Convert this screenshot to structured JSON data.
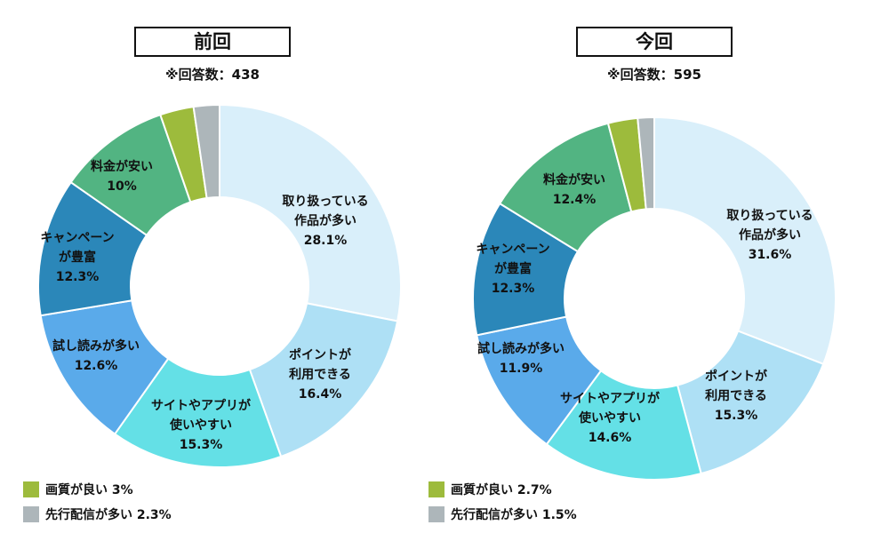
{
  "chart_data": [
    {
      "type": "pie",
      "title": "前回",
      "subtitle": "※回答数：438",
      "series": [
        {
          "name": "取り扱っている作品が多い",
          "label_lines": [
            "取り扱っている",
            "作品が多い",
            "28.1%"
          ],
          "value": 28.1,
          "color": "#d9effa"
        },
        {
          "name": "ポイントが利用できる",
          "label_lines": [
            "ポイントが",
            "利用できる",
            "16.4%"
          ],
          "value": 16.4,
          "color": "#aee0f5"
        },
        {
          "name": "サイトやアプリが使いやすい",
          "label_lines": [
            "サイトやアプリが",
            "使いやすい",
            "15.3%"
          ],
          "value": 15.3,
          "color": "#64e0e6"
        },
        {
          "name": "試し読みが多い",
          "label_lines": [
            "試し読みが多い",
            "12.6%"
          ],
          "value": 12.6,
          "color": "#5aaaea"
        },
        {
          "name": "キャンペーンが豊富",
          "label_lines": [
            "キャンペーン",
            "が豊富",
            "12.3%"
          ],
          "value": 12.3,
          "color": "#2b87b9"
        },
        {
          "name": "料金が安い",
          "label_lines": [
            "料金が安い",
            "10%"
          ],
          "value": 10.0,
          "color": "#52b482"
        },
        {
          "name": "画質が良い",
          "label_lines": [],
          "value": 3.0,
          "color": "#9dbb3c"
        },
        {
          "name": "先行配信が多い",
          "label_lines": [],
          "value": 2.3,
          "color": "#adb6ba"
        }
      ],
      "legend": [
        {
          "text": "画質が良い 3%",
          "color": "#9dbb3c"
        },
        {
          "text": "先行配信が多い 2.3%",
          "color": "#adb6ba"
        }
      ]
    },
    {
      "type": "pie",
      "title": "今回",
      "subtitle": "※回答数：595",
      "series": [
        {
          "name": "取り扱っている作品が多い",
          "label_lines": [
            "取り扱っている",
            "作品が多い",
            "31.6%"
          ],
          "value": 31.6,
          "color": "#d9effa"
        },
        {
          "name": "ポイントが利用できる",
          "label_lines": [
            "ポイントが",
            "利用できる",
            "15.3%"
          ],
          "value": 15.3,
          "color": "#aee0f5"
        },
        {
          "name": "サイトやアプリが使いやすい",
          "label_lines": [
            "サイトやアプリが",
            "使いやすい",
            "14.6%"
          ],
          "value": 14.6,
          "color": "#64e0e6"
        },
        {
          "name": "試し読みが多い",
          "label_lines": [
            "試し読みが多い",
            "11.9%"
          ],
          "value": 11.9,
          "color": "#5aaaea"
        },
        {
          "name": "キャンペーンが豊富",
          "label_lines": [
            "キャンペーン",
            "が豊富",
            "12.3%"
          ],
          "value": 12.3,
          "color": "#2b87b9"
        },
        {
          "name": "料金が安い",
          "label_lines": [
            "料金が安い",
            "12.4%"
          ],
          "value": 12.4,
          "color": "#52b482"
        },
        {
          "name": "画質が良い",
          "label_lines": [],
          "value": 2.7,
          "color": "#9dbb3c"
        },
        {
          "name": "先行配信が多い",
          "label_lines": [],
          "value": 1.5,
          "color": "#adb6ba"
        }
      ],
      "legend": [
        {
          "text": "画質が良い 2.7%",
          "color": "#9dbb3c"
        },
        {
          "text": "先行配信が多い 1.5%",
          "color": "#adb6ba"
        }
      ]
    }
  ]
}
